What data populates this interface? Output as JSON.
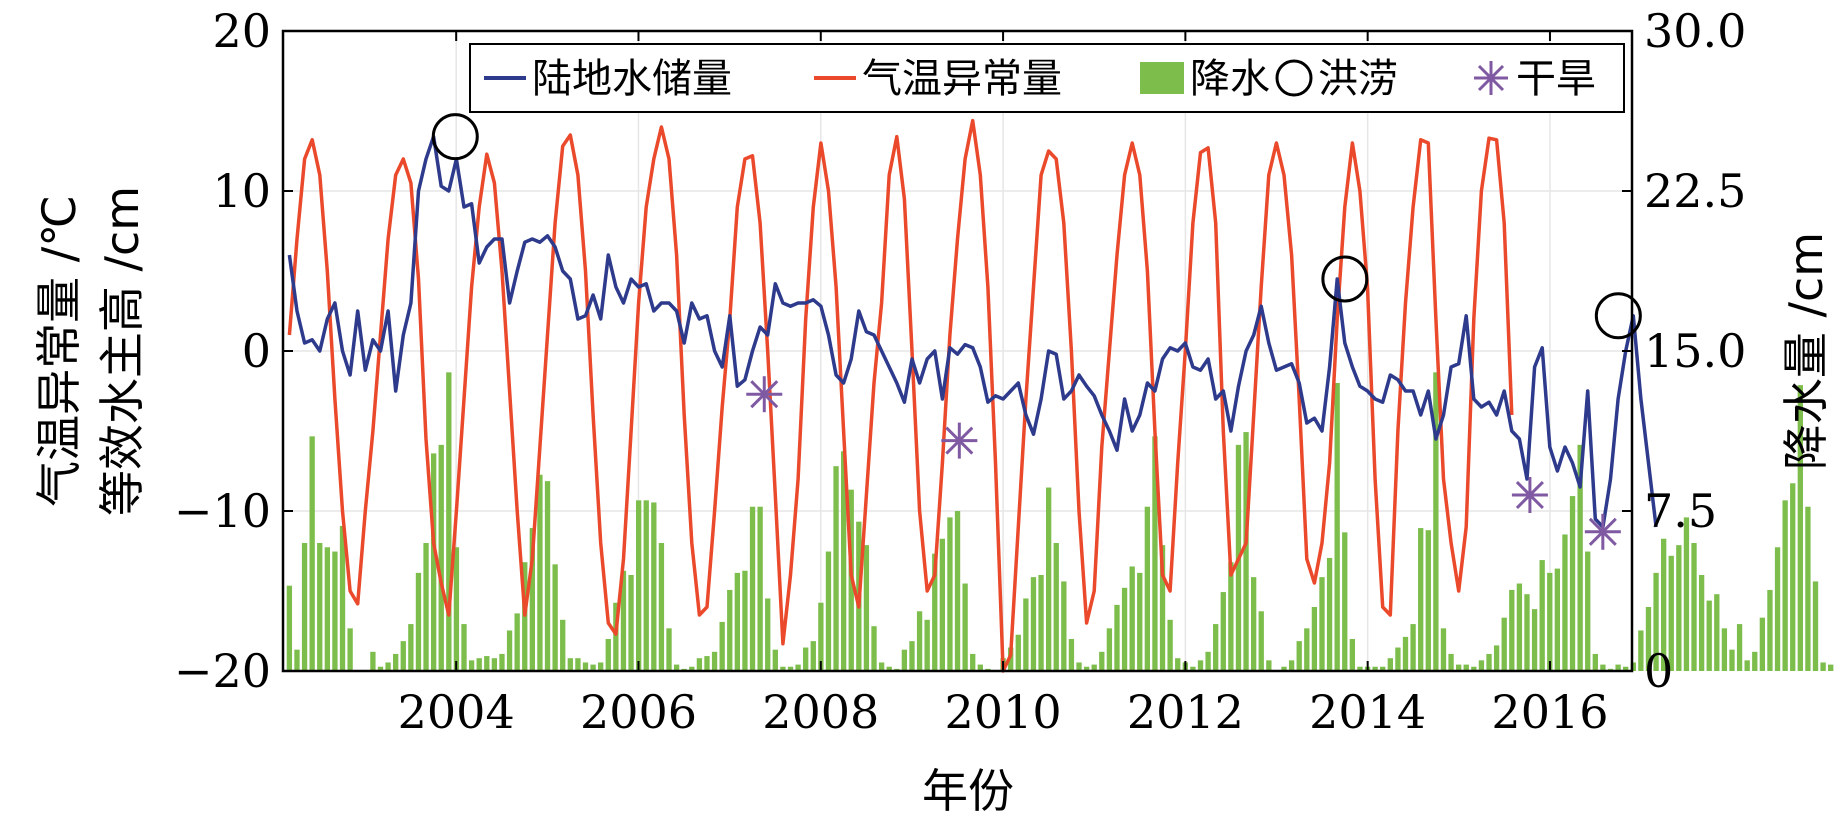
{
  "chart_data": {
    "type": "bar+line",
    "xlabel": "年份",
    "ylabel_left_line1": "气温异常量 /℃",
    "ylabel_left_line2": "等效水主高 /cm",
    "ylabel_right": "降水量 /cm",
    "x_ticks": [
      "2004",
      "2006",
      "2008",
      "2010",
      "2012",
      "2014",
      "2016"
    ],
    "y_left_ticks": [
      "20",
      "10",
      "0",
      "−10",
      "−20"
    ],
    "y_right_ticks": [
      "30.0",
      "22.5",
      "15.0",
      "7.5",
      "0"
    ],
    "xlim": [
      2002.1,
      2016.9
    ],
    "ylim_left": [
      -20,
      20
    ],
    "ylim_right": [
      0,
      30
    ],
    "legend_position": "top",
    "legend": {
      "tws": "陆地水储量",
      "temp": "气温异常量",
      "precip": "降水",
      "flood": "洪涝",
      "drought": "干旱"
    },
    "colors": {
      "tws": "#2e3a8c",
      "temp": "#ea4a2b",
      "precip": "#7cbd4c",
      "drought": "#7f5aa2",
      "flood": "#000000"
    },
    "series": [
      {
        "name": "陆地水储量",
        "axis": "left",
        "x_start": 2002.17,
        "x_step": 0.0833,
        "values": [
          6,
          2.5,
          0.5,
          0.7,
          0,
          2,
          3,
          0,
          -1.5,
          2.5,
          -1.2,
          0.7,
          0,
          2.5,
          -2.5,
          1,
          3,
          10,
          12,
          13.4,
          10.3,
          10,
          12,
          9,
          9.2,
          5.5,
          6.5,
          7,
          7,
          3,
          5,
          6.8,
          7,
          6.8,
          7.2,
          6.5,
          5,
          4.5,
          2,
          2.2,
          3.5,
          2,
          6,
          4,
          3,
          4.5,
          4,
          4.2,
          2.5,
          3,
          3,
          2.5,
          0.5,
          3,
          2,
          2.2,
          0,
          -1,
          2.2,
          -2.2,
          -1.8,
          0,
          1.5,
          1,
          4.2,
          3,
          2.8,
          3,
          3,
          3.2,
          2.8,
          1,
          -1.5,
          -2,
          -0.5,
          2.5,
          1.2,
          1,
          0,
          -1,
          -2,
          -3.2,
          -0.5,
          -2,
          -0.5,
          0,
          -3,
          0.2,
          -0.2,
          0.4,
          0.2,
          -1,
          -3.2,
          -2.8,
          -3,
          -2.5,
          -2,
          -4,
          -5.2,
          -3,
          0,
          -0.2,
          -3,
          -2.5,
          -1.5,
          -2.2,
          -2.8,
          -4,
          -5,
          -6.2,
          -3,
          -5,
          -4,
          -2,
          -2.5,
          -0.5,
          0.2,
          0,
          0.5,
          -1,
          -1.2,
          -0.5,
          -3,
          -2.5,
          -5,
          -2.2,
          0,
          1,
          2.8,
          0.5,
          -1.2,
          -1,
          -0.8,
          -2,
          -4.5,
          -4.2,
          -5,
          -1,
          4.5,
          0.5,
          -1,
          -2.2,
          -2.5,
          -3,
          -3.2,
          -1.5,
          -1.8,
          -2.5,
          -2.5,
          -4,
          -2.5,
          -5.5,
          -4,
          -1,
          -0.8,
          2.2,
          -3,
          -3.5,
          -3.2,
          -4,
          -2.5,
          -5,
          -5.5,
          -8,
          -1,
          0.2,
          -6,
          -7.5,
          -6,
          -7,
          -8.5,
          -2.5,
          -10.5,
          -11,
          -8,
          -3,
          0,
          2.2,
          -3,
          -7,
          -11
        ]
      },
      {
        "name": "气温异常量",
        "axis": "left",
        "x_start": 2002.17,
        "x_step": 0.0833,
        "values": [
          1,
          7,
          12,
          13.2,
          11,
          5,
          -3,
          -10,
          -15,
          -15.8,
          -10,
          -5,
          1,
          7,
          11,
          12,
          10.5,
          4.5,
          -5.5,
          -12,
          -14.5,
          -16.5,
          -10,
          -3,
          4,
          9,
          12.3,
          10.5,
          5,
          -2.5,
          -10,
          -16.5,
          -13,
          -6,
          1,
          8,
          12.8,
          13.5,
          11,
          5,
          -4,
          -12,
          -17,
          -17.7,
          -13,
          -5,
          3,
          9,
          12,
          14,
          12,
          6,
          -4,
          -12,
          -16.5,
          -16,
          -10,
          -3.5,
          2,
          9,
          12,
          12.2,
          8,
          0,
          -9,
          -18.3,
          -14,
          -8,
          2,
          9,
          13,
          10,
          4,
          -5,
          -14,
          -16,
          -9,
          -2,
          3,
          11,
          13.4,
          9.5,
          0,
          -10,
          -15,
          -14,
          -7,
          1,
          7,
          12,
          14.4,
          11,
          4,
          -7,
          -20,
          -19,
          -11,
          -3,
          4,
          11,
          12.5,
          12,
          8,
          0,
          -10,
          -17,
          -15,
          -6,
          0,
          6,
          11,
          13,
          11,
          5,
          -5,
          -14,
          -15,
          -7,
          0,
          8,
          12.4,
          12.7,
          8,
          -5,
          -14,
          -13,
          -12,
          -4,
          4,
          11,
          13,
          11,
          6,
          -3,
          -13,
          -14.5,
          -12,
          -7,
          2,
          9,
          13,
          10,
          4,
          -8,
          -16,
          -16.5,
          -5,
          3,
          9,
          13.2,
          13,
          2,
          -8,
          -12,
          -15,
          -11,
          2,
          10,
          13.3,
          13.2,
          8,
          -4
        ]
      },
      {
        "name": "降水",
        "type": "bar",
        "axis": "right",
        "x_start": 2002.17,
        "x_step": 0.0833,
        "values": [
          4,
          1,
          6,
          11,
          6,
          5.8,
          5.6,
          6.8,
          2,
          0,
          0,
          0.9,
          0.2,
          0.4,
          0.8,
          1.4,
          2.2,
          4.6,
          6,
          10.2,
          10.6,
          14,
          5.8,
          2.2,
          0.5,
          0.6,
          0.7,
          0.6,
          0.8,
          1.9,
          2.7,
          5.1,
          6.7,
          9.2,
          8.9,
          5,
          2.4,
          0.6,
          0.6,
          0.4,
          0.3,
          0.4,
          1.5,
          3.2,
          4.7,
          4.5,
          8,
          8,
          7.9,
          6,
          2,
          0.3,
          0.1,
          0.2,
          0.6,
          0.7,
          0.9,
          2.3,
          3.8,
          4.6,
          4.7,
          7.7,
          7.7,
          3.4,
          1,
          0.2,
          0.2,
          0.3,
          1.1,
          1.4,
          3.2,
          5.6,
          9.6,
          10.3,
          8.5,
          7,
          5.9,
          2.1,
          0.4,
          0.2,
          0.1,
          1,
          1.4,
          2.8,
          2.4,
          5.5,
          6.2,
          7.2,
          7.5,
          4.1,
          0.8,
          0.3,
          0.1,
          0,
          0.6,
          1.1,
          1.7,
          3.4,
          4.4,
          4.5,
          8.6,
          6,
          4.2,
          1.5,
          0.4,
          0.2,
          0.3,
          0.9,
          2,
          3.1,
          3.9,
          4.9,
          4.6,
          7.7,
          11,
          5.9,
          2.4,
          0.6,
          0.4,
          0.2,
          0.5,
          0.9,
          2.2,
          3.7,
          5.1,
          10.6,
          11.2,
          4.4,
          2.8,
          0.5,
          0,
          0.2,
          0.5,
          1.4,
          2,
          3,
          4.4,
          5.3,
          13.5,
          6.5,
          1.5,
          0.2,
          0.2,
          0.2,
          0.2,
          0.6,
          1.1,
          1.6,
          2.2,
          6.7,
          6.6,
          14,
          2,
          0.8,
          0.3,
          0.3,
          0.2,
          0.5,
          0.8,
          1.2,
          2.5,
          3.8,
          4.1,
          3.6,
          2.9,
          5.2,
          4.6,
          4.8,
          6.4,
          8.2,
          10.6,
          5.6,
          0.8,
          0.3,
          0.1,
          0.3,
          0.2,
          0.4,
          1.9,
          3,
          4.6,
          6.2,
          5.4,
          5.9,
          7.2,
          6,
          4.5,
          3.3,
          3.6,
          2,
          1,
          2.2,
          0.5,
          0.9,
          2.5,
          3.8,
          5.8,
          8,
          8.8,
          13.4,
          7.7,
          4.2,
          0.4,
          0.3
        ]
      }
    ],
    "markers": [
      {
        "name": "洪涝",
        "symbol": "circle",
        "points": [
          {
            "x": 2003.99,
            "y": 13.4
          },
          {
            "x": 2013.75,
            "y": 4.5
          },
          {
            "x": 2016.75,
            "y": 2.2
          }
        ]
      },
      {
        "name": "干旱",
        "symbol": "asterisk",
        "points": [
          {
            "x": 2007.38,
            "y": -2.7
          },
          {
            "x": 2009.52,
            "y": -5.6
          },
          {
            "x": 2015.78,
            "y": -9
          },
          {
            "x": 2016.58,
            "y": -11.3
          }
        ]
      }
    ]
  }
}
